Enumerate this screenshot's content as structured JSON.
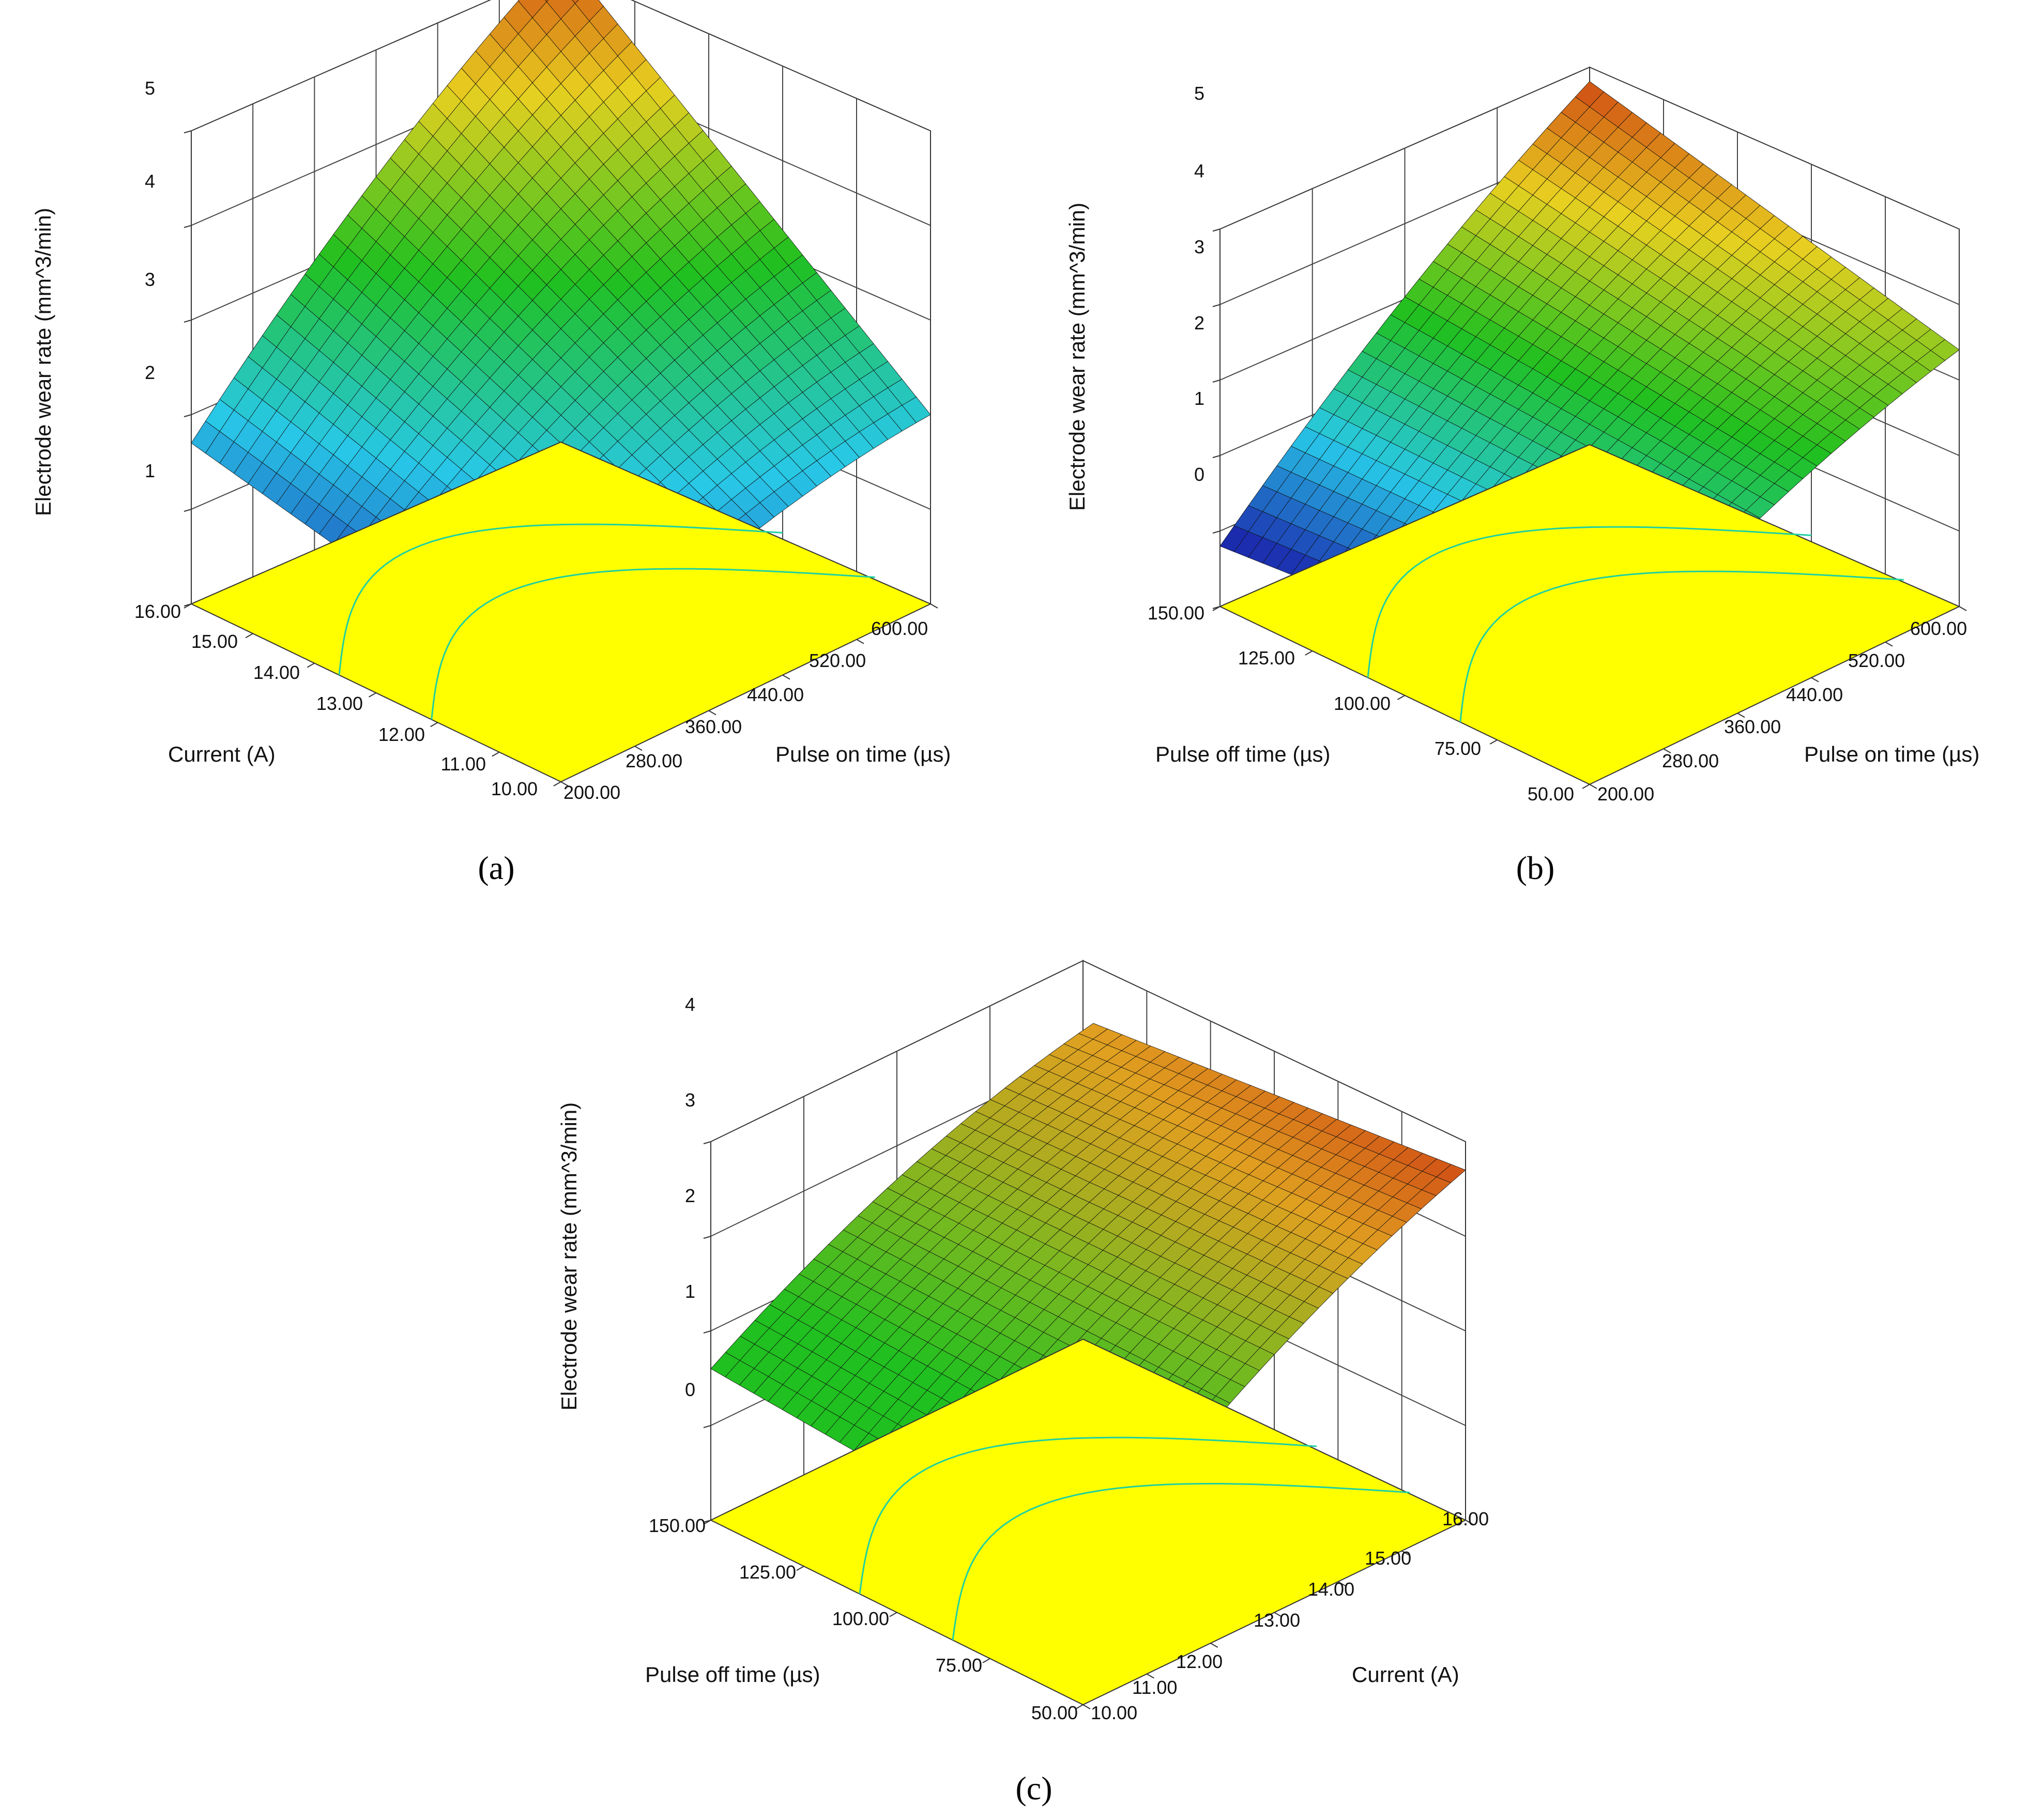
{
  "chart_data": [
    {
      "type": "surface3d",
      "panel_label": "(a)",
      "x": {
        "label": "Pulse on time (µs)",
        "min": 200,
        "max": 600,
        "ticks": [
          "200.00",
          "280.00",
          "360.00",
          "440.00",
          "520.00",
          "600.00"
        ]
      },
      "y": {
        "label": "Current (A)",
        "min": 10,
        "max": 16,
        "ticks": [
          "10.00",
          "11.00",
          "12.00",
          "13.00",
          "14.00",
          "15.00",
          "16.00"
        ]
      },
      "z": {
        "label": "Electrode wear rate (mm^3/min)",
        "min": 0,
        "max": 5,
        "ticks": [
          "1",
          "2",
          "3",
          "4",
          "5"
        ]
      },
      "corner_values": {
        "xmin_ymin": 0.8,
        "xmax_ymin": 2.0,
        "xmin_ymax": 1.7,
        "xmax_ymax": 5.0
      },
      "colorscale": [
        "#1a1aa8",
        "#28c8e8",
        "#20c020",
        "#e8d020",
        "#c82010"
      ],
      "floor_color": "#ffff00",
      "contour_color": "#20d0a0"
    },
    {
      "type": "surface3d",
      "panel_label": "(b)",
      "x": {
        "label": "Pulse on time (µs)",
        "min": 200,
        "max": 600,
        "ticks": [
          "200.00",
          "280.00",
          "360.00",
          "440.00",
          "520.00",
          "600.00"
        ]
      },
      "y": {
        "label": "Pulse off time (µs)",
        "min": 50,
        "max": 150,
        "ticks": [
          "50.00",
          "75.00",
          "100.00",
          "125.00",
          "150.00"
        ]
      },
      "z": {
        "label": "Electrode wear rate (mm^3/min)",
        "min": 0,
        "max": 5,
        "ticks": [
          "0",
          "1",
          "2",
          "3",
          "4",
          "5"
        ]
      },
      "corner_values": {
        "xmin_ymin": 1.2,
        "xmax_ymin": 3.4,
        "xmin_ymax": 0.8,
        "xmax_ymax": 4.6
      },
      "colorscale": [
        "#1a1aa8",
        "#28c8e8",
        "#20c020",
        "#e8d020",
        "#c82010"
      ],
      "floor_color": "#ffff00",
      "contour_color": "#20d0a0"
    },
    {
      "type": "surface3d",
      "panel_label": "(c)",
      "x": {
        "label": "Current (A)",
        "min": 10,
        "max": 16,
        "ticks": [
          "10.00",
          "11.00",
          "12.00",
          "13.00",
          "14.00",
          "15.00",
          "16.00"
        ]
      },
      "y": {
        "label": "Pulse off time (µs)",
        "min": 50,
        "max": 150,
        "ticks": [
          "50.00",
          "75.00",
          "100.00",
          "125.00",
          "150.00"
        ]
      },
      "z": {
        "label": "Electrode wear rate (mm^3/min)",
        "min": 0,
        "max": 4,
        "ticks": [
          "0",
          "1",
          "2",
          "3",
          "4"
        ]
      },
      "corner_values": {
        "xmin_ymin": 1.3,
        "xmax_ymin": 3.7,
        "xmin_ymax": 1.6,
        "xmax_ymax": 3.3
      },
      "colorscale": [
        "#20c020",
        "#20c020",
        "#7ab820",
        "#e0a020",
        "#c82010"
      ],
      "floor_color": "#ffff00",
      "contour_color": "#20d0a0"
    }
  ]
}
